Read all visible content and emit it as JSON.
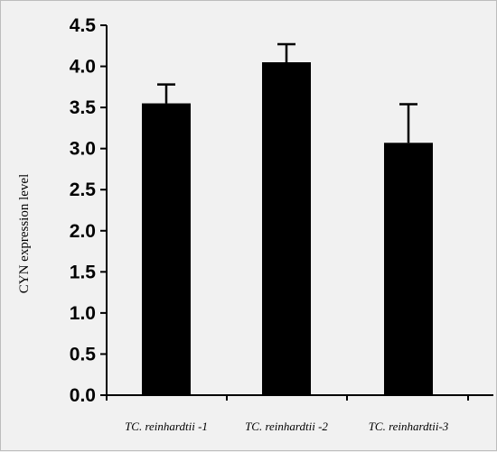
{
  "chart_data": {
    "type": "bar",
    "title": "",
    "xlabel": "",
    "ylabel": "CYN expression level",
    "categories": [
      "TC. reinhardtii -1",
      "TC. reinhardtii -2",
      "TC. reinhardtii-3"
    ],
    "values": [
      3.55,
      4.05,
      3.07
    ],
    "errors": [
      0.23,
      0.22,
      0.47
    ],
    "ylim": [
      0,
      4.5
    ],
    "yticks": [
      "0.0",
      "0.5",
      "1.0",
      "1.5",
      "2.0",
      "2.5",
      "3.0",
      "3.5",
      "4.0",
      "4.5"
    ],
    "grid": false,
    "bar_color": "#000000"
  }
}
